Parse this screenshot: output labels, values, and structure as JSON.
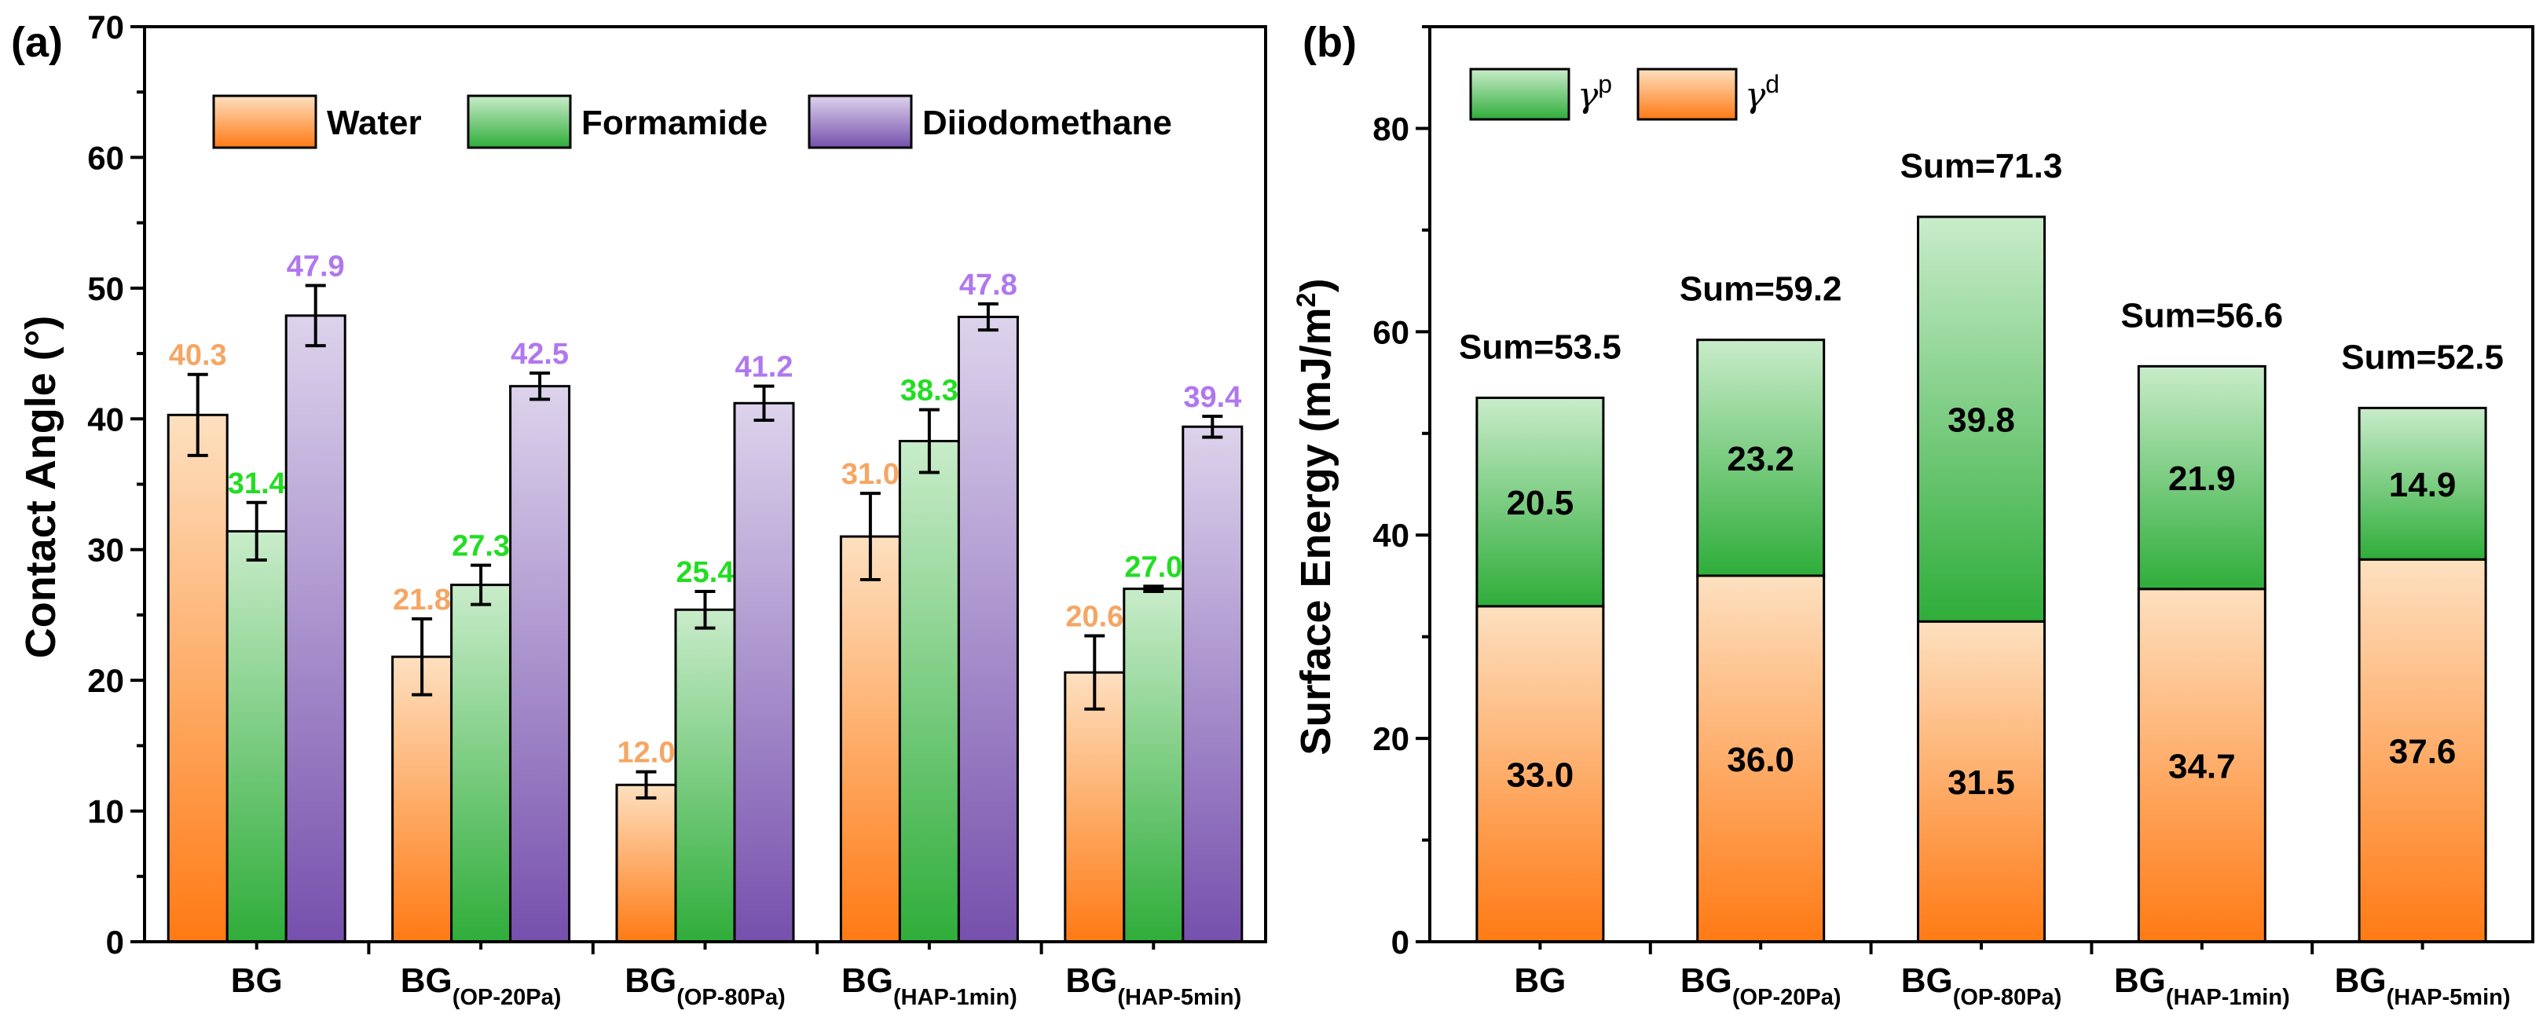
{
  "colors": {
    "water_light": "#fde0c0",
    "water_dark": "#ff7a14",
    "formamide_light": "#c9ecca",
    "formamide_dark": "#2fad3a",
    "diiodo_light": "#ddd3ec",
    "diiodo_dark": "#7650ad",
    "water_label": "#f5a663",
    "formamide_label": "#22dd22",
    "diiodo_label": "#b077f0"
  },
  "chart_data": [
    {
      "type": "bar",
      "panel": "(a)",
      "ylabel": "Contact Angle (°)",
      "ylim": [
        0,
        70
      ],
      "yticks": [
        "0",
        "10",
        "20",
        "30",
        "40",
        "50",
        "60",
        "70"
      ],
      "categories": [
        {
          "base": "BG",
          "sub": ""
        },
        {
          "base": "BG",
          "sub": "(OP-20Pa)"
        },
        {
          "base": "BG",
          "sub": "(OP-80Pa)"
        },
        {
          "base": "BG",
          "sub": "(HAP-1min)"
        },
        {
          "base": "BG",
          "sub": "(HAP-5min)"
        }
      ],
      "legend_position": "top",
      "series": [
        {
          "name": "Water",
          "values": [
            40.3,
            21.8,
            12.0,
            31.0,
            20.6
          ],
          "errors": [
            3.1,
            2.9,
            1.0,
            3.3,
            2.8
          ],
          "labels": [
            "40.3",
            "21.8",
            "12.0",
            "31.0",
            "20.6"
          ]
        },
        {
          "name": "Formamide",
          "values": [
            31.4,
            27.3,
            25.4,
            38.3,
            27.0
          ],
          "errors": [
            2.2,
            1.5,
            1.4,
            2.4,
            0.2
          ],
          "labels": [
            "31.4",
            "27.3",
            "25.4",
            "38.3",
            "27.0"
          ]
        },
        {
          "name": "Diiodomethane",
          "values": [
            47.9,
            42.5,
            41.2,
            47.8,
            39.4
          ],
          "errors": [
            2.3,
            1.0,
            1.3,
            1.0,
            0.8
          ],
          "labels": [
            "47.9",
            "42.5",
            "41.2",
            "47.8",
            "39.4"
          ]
        }
      ]
    },
    {
      "type": "bar",
      "stacked": true,
      "panel": "(b)",
      "ylabel": "Surface Energy (mJ/m²)",
      "ylim": [
        0,
        90
      ],
      "yticks": [
        "0",
        "20",
        "40",
        "60",
        "80"
      ],
      "categories": [
        {
          "base": "BG",
          "sub": ""
        },
        {
          "base": "BG",
          "sub": "(OP-20Pa)"
        },
        {
          "base": "BG",
          "sub": "(OP-80Pa)"
        },
        {
          "base": "BG",
          "sub": "(HAP-1min)"
        },
        {
          "base": "BG",
          "sub": "(HAP-5min)"
        }
      ],
      "legend_position": "top-left",
      "legend": [
        {
          "symbol": "γ",
          "sup": "p"
        },
        {
          "symbol": "γ",
          "sup": "d"
        }
      ],
      "series": [
        {
          "name": "γd",
          "values": [
            33.0,
            36.0,
            31.5,
            34.7,
            37.6
          ],
          "labels": [
            "33.0",
            "36.0",
            "31.5",
            "34.7",
            "37.6"
          ]
        },
        {
          "name": "γp",
          "values": [
            20.5,
            23.2,
            39.8,
            21.9,
            14.9
          ],
          "labels": [
            "20.5",
            "23.2",
            "39.8",
            "21.9",
            "14.9"
          ]
        }
      ],
      "sums": [
        53.5,
        59.2,
        71.3,
        56.6,
        52.5
      ],
      "sum_labels": [
        "Sum=53.5",
        "Sum=59.2",
        "Sum=71.3",
        "Sum=56.6",
        "Sum=52.5"
      ]
    }
  ]
}
